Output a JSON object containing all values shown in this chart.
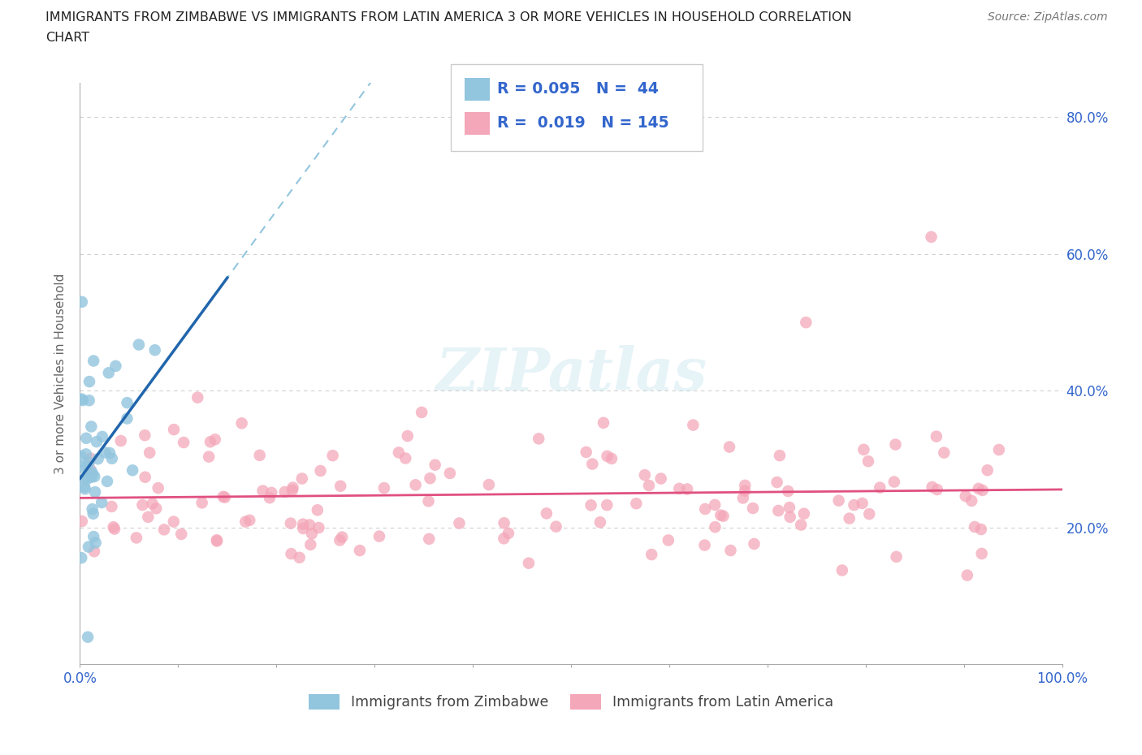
{
  "title_line1": "IMMIGRANTS FROM ZIMBABWE VS IMMIGRANTS FROM LATIN AMERICA 3 OR MORE VEHICLES IN HOUSEHOLD CORRELATION",
  "title_line2": "CHART",
  "source": "Source: ZipAtlas.com",
  "ylabel": "3 or more Vehicles in Household",
  "xlim": [
    0,
    1
  ],
  "ylim": [
    0,
    0.85
  ],
  "yticks": [
    0.2,
    0.4,
    0.6,
    0.8
  ],
  "ytick_labels": [
    "20.0%",
    "40.0%",
    "60.0%",
    "80.0%"
  ],
  "xtick_positions": [
    0.0,
    0.1,
    0.2,
    0.3,
    0.4,
    0.5,
    0.6,
    0.7,
    0.8,
    0.9,
    1.0
  ],
  "watermark": "ZIPatlas",
  "color_zimbabwe": "#92c5de",
  "color_latin": "#f4a7b9",
  "trendline_color_zimbabwe": "#2166ac",
  "trendline_dashed_color": "#92c5de",
  "trendline_color_latin": "#e05080",
  "grid_color": "#d0d0d0",
  "background": "#ffffff",
  "legend_text_color": "#3366cc",
  "legend_label_color": "#333333",
  "zim_seed": 7,
  "lat_seed": 13
}
